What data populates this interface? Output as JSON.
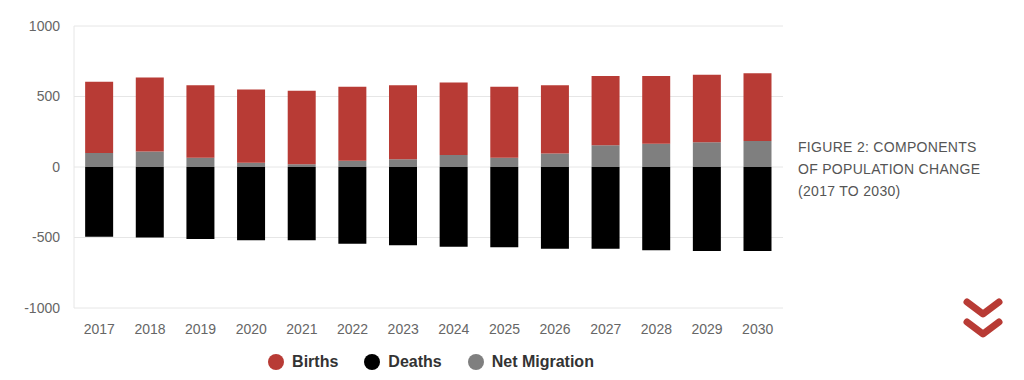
{
  "chart_data": {
    "type": "bar",
    "title": "FIGURE 2: COMPONENTS OF POPULATION CHANGE (2017 TO 2030)",
    "categories": [
      "2017",
      "2018",
      "2019",
      "2020",
      "2021",
      "2022",
      "2023",
      "2024",
      "2025",
      "2026",
      "2027",
      "2028",
      "2029",
      "2030"
    ],
    "series": [
      {
        "name": "Births",
        "color": "#b83b35",
        "values": [
          505,
          525,
          515,
          520,
          520,
          525,
          525,
          515,
          505,
          485,
          490,
          480,
          480,
          480
        ]
      },
      {
        "name": "Deaths",
        "color": "#000000",
        "values": [
          -495,
          -500,
          -510,
          -520,
          -520,
          -545,
          -555,
          -565,
          -570,
          -580,
          -580,
          -590,
          -595,
          -595
        ]
      },
      {
        "name": "Net Migration",
        "color": "#7f7f7f",
        "values": [
          100,
          110,
          65,
          30,
          20,
          45,
          55,
          85,
          65,
          95,
          155,
          165,
          175,
          185
        ]
      }
    ],
    "ylim": [
      -1000,
      1000
    ],
    "yticks": [
      -1000,
      -500,
      0,
      500,
      1000
    ],
    "grid": true,
    "stacked": true,
    "legend": "bottom"
  }
}
